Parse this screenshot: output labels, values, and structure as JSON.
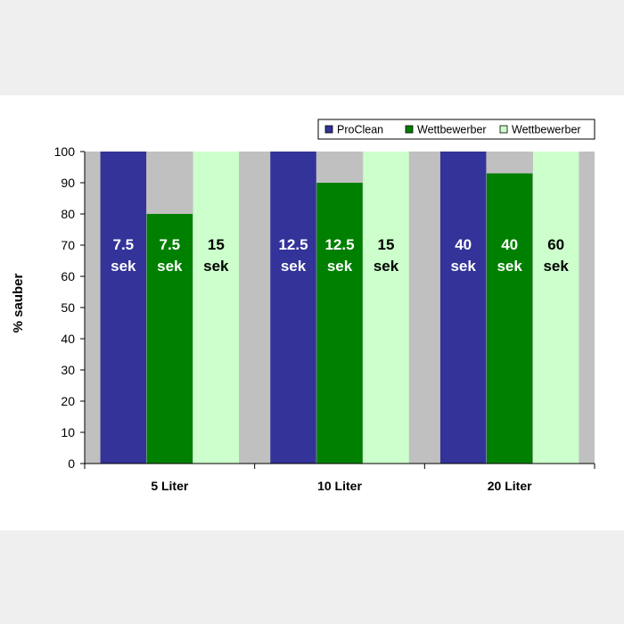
{
  "colors": {
    "page_background": "#efefef",
    "plot_background": "#c0c0c0",
    "proclean": "#333399",
    "competitor_dark": "#008000",
    "competitor_light": "#ccffcc"
  },
  "chart_data": {
    "type": "bar",
    "title": "",
    "xlabel": "",
    "ylabel": "% sauber",
    "ylim": [
      0,
      100
    ],
    "yticks": [
      0,
      10,
      20,
      30,
      40,
      50,
      60,
      70,
      80,
      90,
      100
    ],
    "grid": false,
    "legend_position": "top-right",
    "categories": [
      "5 Liter",
      "10 Liter",
      "20 Liter"
    ],
    "series": [
      {
        "name": "ProClean",
        "color": "#333399",
        "label_color": "#ffffff",
        "values": [
          100,
          100,
          100
        ],
        "labels": [
          [
            "7.5",
            "sek"
          ],
          [
            "12.5",
            "sek"
          ],
          [
            "40",
            "sek"
          ]
        ]
      },
      {
        "name": "Wettbewerber",
        "color": "#008000",
        "label_color": "#ffffff",
        "values": [
          80,
          90,
          93
        ],
        "labels": [
          [
            "7.5",
            "sek"
          ],
          [
            "12.5",
            "sek"
          ],
          [
            "40",
            "sek"
          ]
        ]
      },
      {
        "name": "Wettbewerber",
        "color": "#ccffcc",
        "label_color": "#000000",
        "values": [
          100,
          100,
          100
        ],
        "labels": [
          [
            "15",
            "sek"
          ],
          [
            "15",
            "sek"
          ],
          [
            "60",
            "sek"
          ]
        ]
      }
    ]
  }
}
